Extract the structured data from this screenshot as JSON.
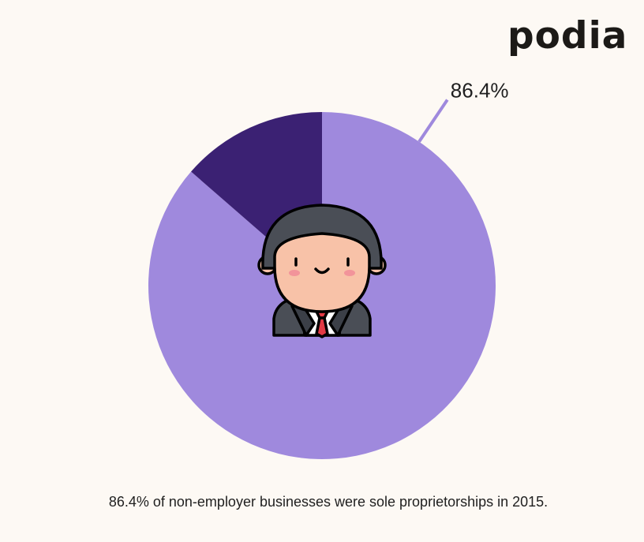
{
  "brand": {
    "logo_text": "podia"
  },
  "chart_data": {
    "type": "pie",
    "slices": [
      {
        "value": 86.4,
        "color": "#9f89dd",
        "label": "86.4%"
      },
      {
        "value": 13.6,
        "color": "#3b2173",
        "label": ""
      }
    ],
    "start_angle_deg": 0,
    "direction": "clockwise",
    "center_icon": "businessman-icon"
  },
  "caption": "86.4% of non-employer businesses were sole proprietorships in 2015."
}
